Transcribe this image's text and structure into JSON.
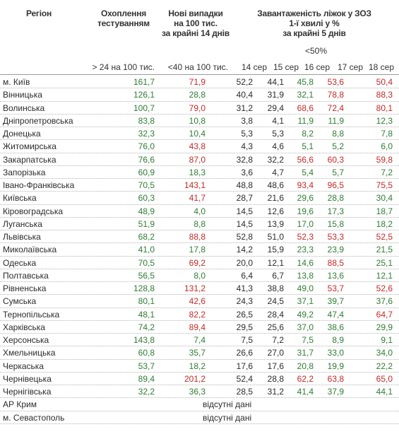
{
  "header": {
    "region": "Регіон",
    "testing_line1": "Охоплення",
    "testing_line2": "тестуванням",
    "cases_line1": "Нові випадки",
    "cases_line2": "на 100 тис.",
    "cases_line3": "за крайні 14 днів",
    "beds_line1": "Завантаженість ліжок у ЗОЗ",
    "beds_line2": "1-ї хвилі у %",
    "beds_line3": "за крайні 5 днів",
    "beds_threshold": "<50%",
    "testing_threshold": "> 24 на 100 тис.",
    "cases_threshold": "<40 на 100 тис.",
    "dates": [
      "14 сер",
      "15 сер",
      "16 сер",
      "17 сер",
      "18 сер"
    ]
  },
  "colors": {
    "good": "#2e7d32",
    "bad": "#c62828",
    "neutral": "#2b2b2b"
  },
  "absent_text": "відсутні дані",
  "rows": [
    {
      "region": "м. Київ",
      "testing": "161,7",
      "cases": "71,9",
      "beds": [
        "52,2",
        "44,1",
        "45,8",
        "53,6",
        "50,4"
      ]
    },
    {
      "region": "Вінницька",
      "testing": "126,1",
      "cases": "28,8",
      "beds": [
        "40,4",
        "31,9",
        "32,1",
        "78,8",
        "88,3"
      ]
    },
    {
      "region": "Волинська",
      "testing": "100,7",
      "cases": "79,0",
      "beds": [
        "31,2",
        "29,4",
        "68,6",
        "72,4",
        "80,1"
      ]
    },
    {
      "region": "Дніпропетровська",
      "testing": "83,8",
      "cases": "10,8",
      "beds": [
        "3,8",
        "4,1",
        "11,9",
        "11,9",
        "12,3"
      ]
    },
    {
      "region": "Донецька",
      "testing": "32,3",
      "cases": "10,4",
      "beds": [
        "5,3",
        "5,3",
        "8,2",
        "8,8",
        "7,8"
      ]
    },
    {
      "region": "Житомирська",
      "testing": "76,0",
      "cases": "43,8",
      "beds": [
        "4,3",
        "4,6",
        "5,1",
        "5,2",
        "6,0"
      ]
    },
    {
      "region": "Закарпатська",
      "testing": "76,6",
      "cases": "87,0",
      "beds": [
        "32,8",
        "32,2",
        "56,6",
        "60,3",
        "59,8"
      ]
    },
    {
      "region": "Запорізька",
      "testing": "60,9",
      "cases": "18,3",
      "beds": [
        "3,6",
        "4,7",
        "5,4",
        "5,7",
        "7,2"
      ]
    },
    {
      "region": "Івано-Франківська",
      "testing": "70,5",
      "cases": "143,1",
      "beds": [
        "48,8",
        "48,6",
        "93,4",
        "96,5",
        "75,5"
      ]
    },
    {
      "region": "Київська",
      "testing": "60,3",
      "cases": "41,7",
      "beds": [
        "28,7",
        "21,6",
        "29,6",
        "28,8",
        "30,4"
      ]
    },
    {
      "region": "Кіровоградська",
      "testing": "48,9",
      "cases": "4,0",
      "beds": [
        "14,5",
        "12,6",
        "19,6",
        "17,3",
        "18,7"
      ]
    },
    {
      "region": "Луганська",
      "testing": "51,9",
      "cases": "8,8",
      "beds": [
        "14,5",
        "13,9",
        "17,0",
        "15,8",
        "18,2"
      ]
    },
    {
      "region": "Львівська",
      "testing": "68,2",
      "cases": "88,8",
      "beds": [
        "52,8",
        "51,0",
        "52,3",
        "53,3",
        "52,5"
      ]
    },
    {
      "region": "Миколаївська",
      "testing": "41,0",
      "cases": "17,8",
      "beds": [
        "14,2",
        "15,9",
        "23,3",
        "23,9",
        "21,5"
      ]
    },
    {
      "region": "Одеська",
      "testing": "70,5",
      "cases": "69,2",
      "beds": [
        "20,0",
        "12,1",
        "14,6",
        "88,5",
        "25,1"
      ]
    },
    {
      "region": "Полтавська",
      "testing": "56,5",
      "cases": "8,0",
      "beds": [
        "6,4",
        "6,7",
        "13,8",
        "13,6",
        "12,1"
      ]
    },
    {
      "region": "Рівненська",
      "testing": "128,8",
      "cases": "131,2",
      "beds": [
        "41,3",
        "38,8",
        "49,0",
        "53,7",
        "52,6"
      ]
    },
    {
      "region": "Сумська",
      "testing": "80,1",
      "cases": "42,6",
      "beds": [
        "24,3",
        "24,5",
        "37,1",
        "39,7",
        "37,6"
      ]
    },
    {
      "region": "Тернопільська",
      "testing": "48,1",
      "cases": "82,2",
      "beds": [
        "26,5",
        "28,4",
        "49,2",
        "47,4",
        "64,7"
      ]
    },
    {
      "region": "Харківська",
      "testing": "74,2",
      "cases": "89,4",
      "beds": [
        "29,5",
        "25,6",
        "37,0",
        "38,6",
        "29,9"
      ]
    },
    {
      "region": "Херсонська",
      "testing": "143,8",
      "cases": "7,4",
      "beds": [
        "7,5",
        "7,2",
        "7,5",
        "8,9",
        "9,1"
      ]
    },
    {
      "region": "Хмельницька",
      "testing": "60,8",
      "cases": "35,7",
      "beds": [
        "26,6",
        "27,0",
        "31,7",
        "33,0",
        "34,0"
      ]
    },
    {
      "region": "Черкаська",
      "testing": "53,7",
      "cases": "18,2",
      "beds": [
        "17,6",
        "17,6",
        "20,8",
        "19,9",
        "22,2"
      ]
    },
    {
      "region": "Чернівецька",
      "testing": "89,4",
      "cases": "201,2",
      "beds": [
        "52,4",
        "28,8",
        "62,2",
        "63,8",
        "65,0"
      ]
    },
    {
      "region": "Чернігівська",
      "testing": "32,2",
      "cases": "36,3",
      "beds": [
        "28,5",
        "31,2",
        "41,4",
        "37,9",
        "44,1"
      ]
    },
    {
      "region": "АР Крим",
      "absent": true
    },
    {
      "region": "м. Севастополь",
      "absent": true
    }
  ]
}
